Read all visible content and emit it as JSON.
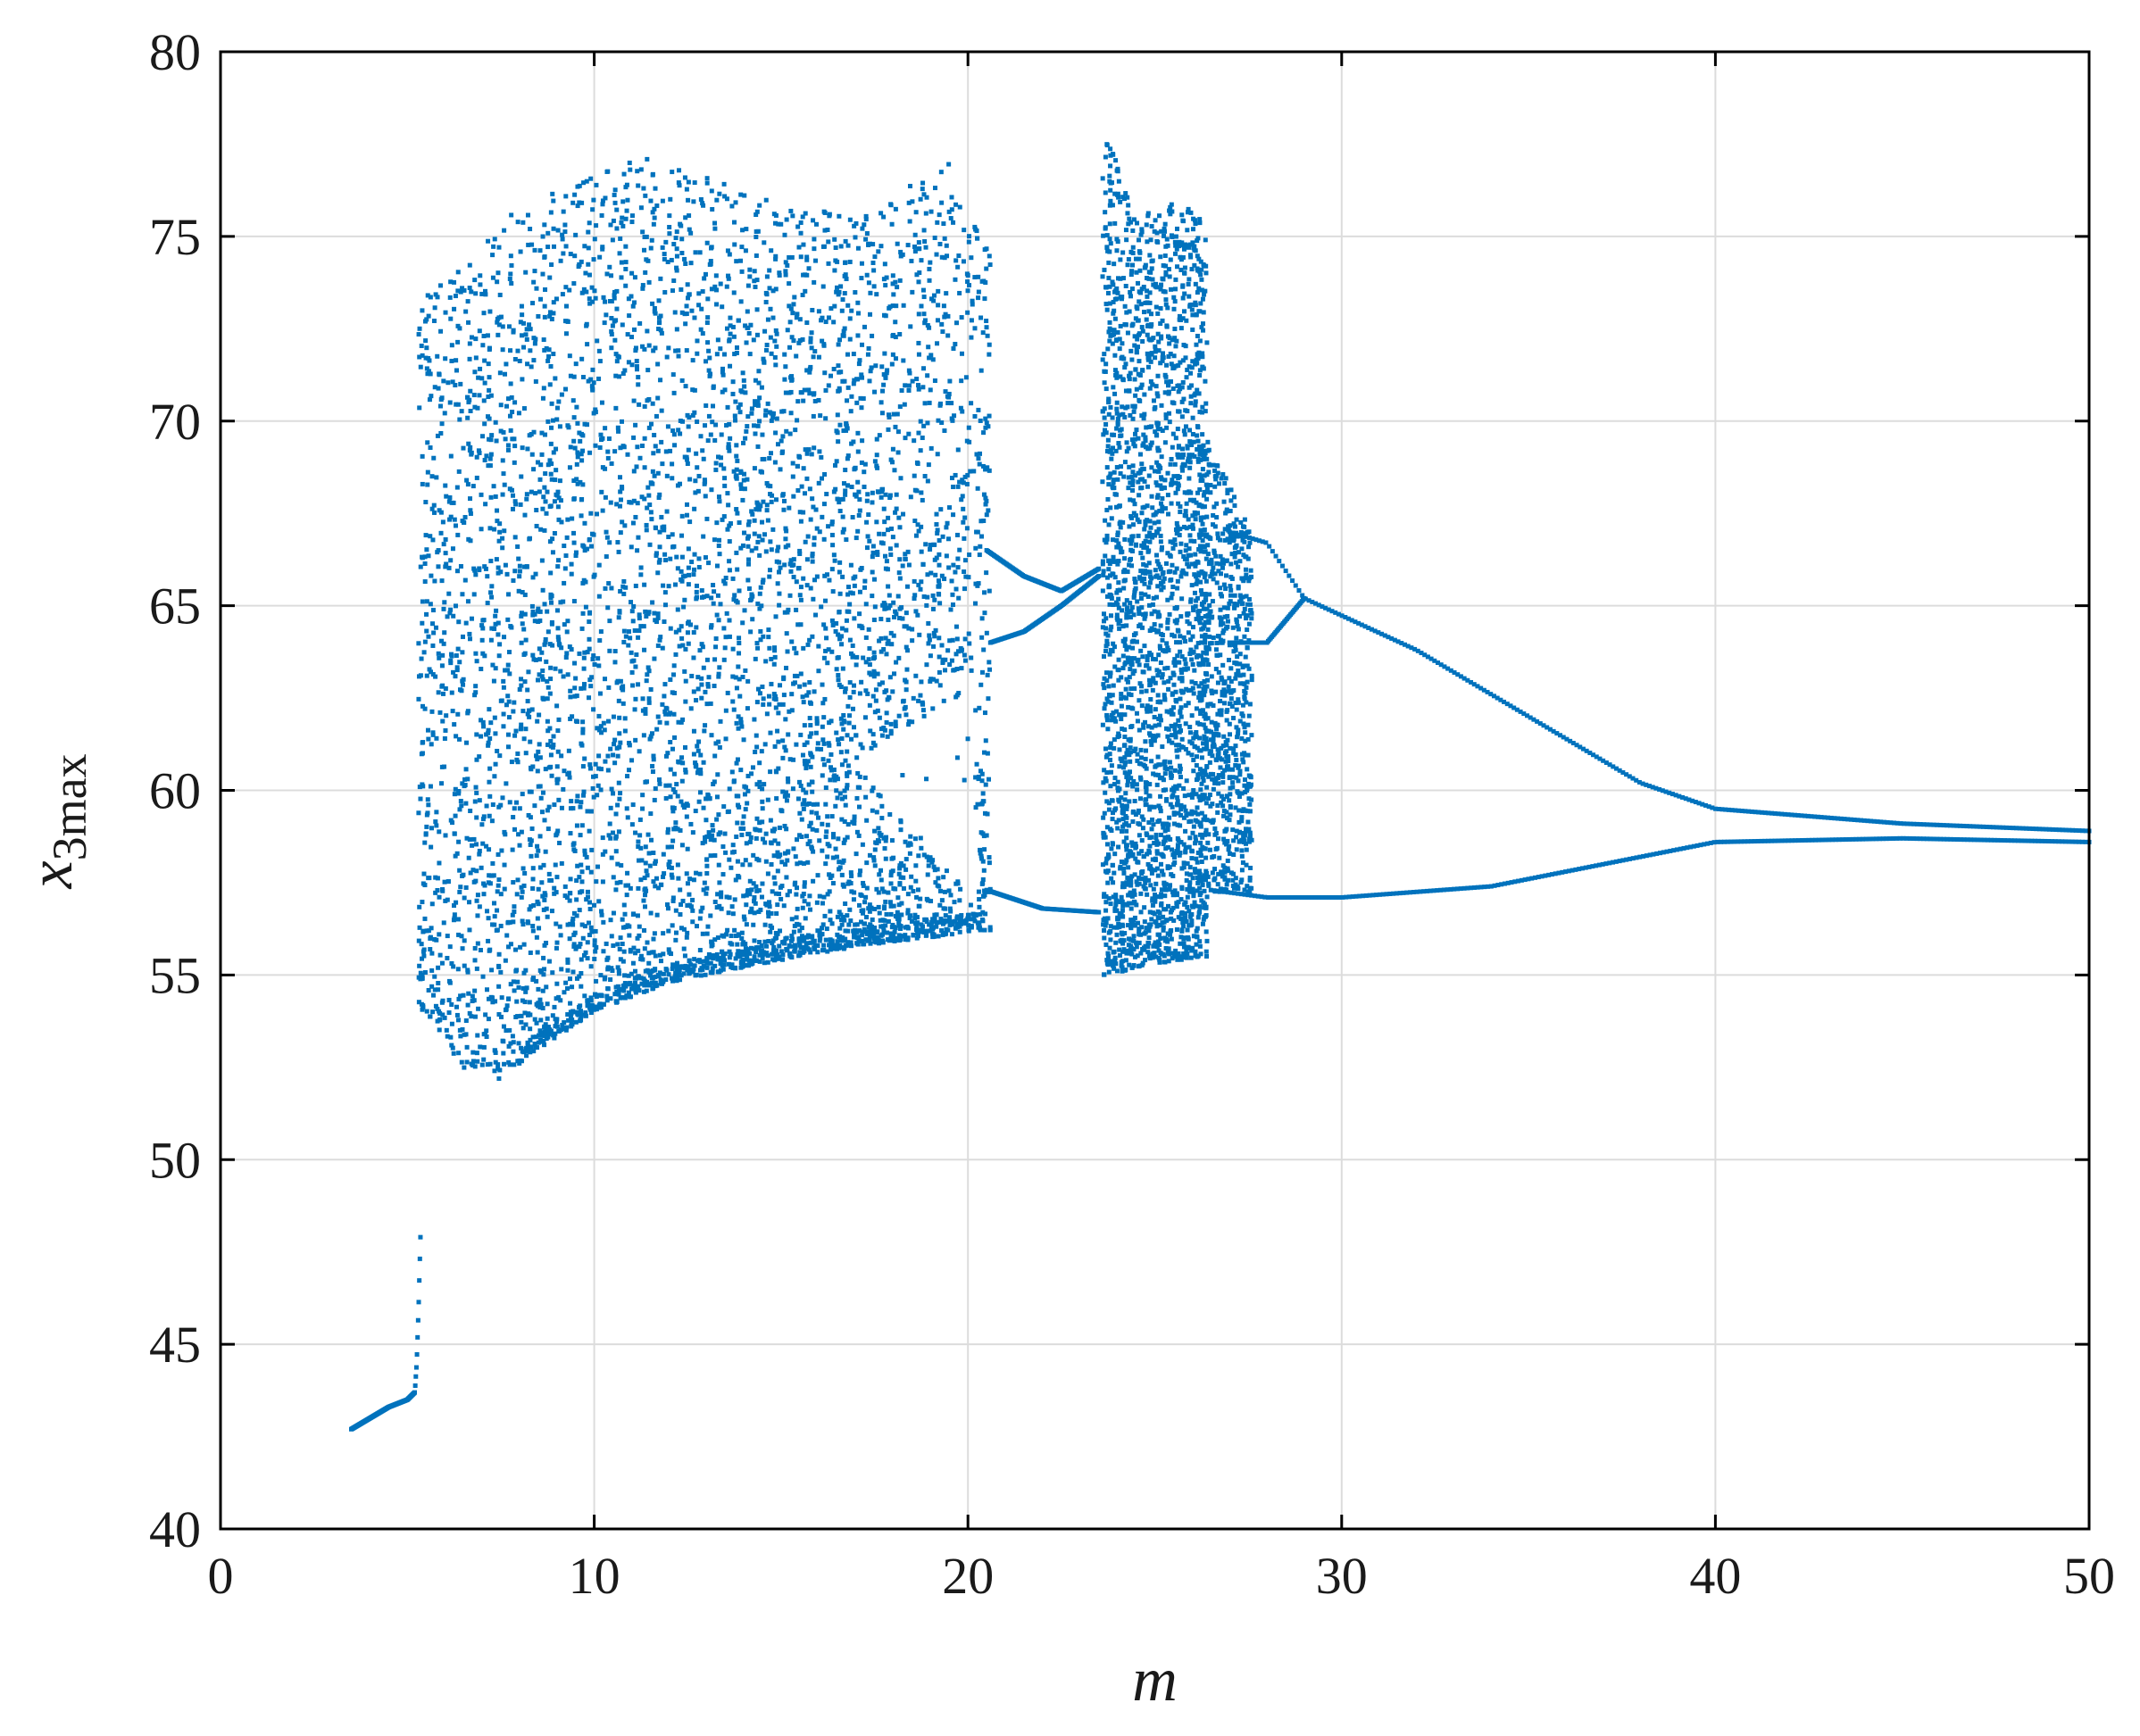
{
  "chart_data": {
    "type": "scatter",
    "title": "",
    "xlabel": "m",
    "ylabel": {
      "base": "x",
      "subscript": "3max"
    },
    "xlim": [
      0,
      50
    ],
    "ylim": [
      40,
      80
    ],
    "xticks": [
      0,
      10,
      20,
      30,
      40,
      50
    ],
    "yticks": [
      40,
      45,
      50,
      55,
      60,
      65,
      70,
      75,
      80
    ],
    "grid": true,
    "box": true,
    "legend": "none",
    "point_color": "#0072BD",
    "series": [
      {
        "description_type": "bifurcation diagram",
        "periodic_branch_low_m": {
          "x": [
            3.5,
            4.0,
            4.5,
            5.0,
            5.2,
            5.25,
            5.3,
            5.35
          ],
          "y": [
            42.7,
            43.0,
            43.3,
            43.5,
            43.7,
            44.5,
            46.0,
            47.9
          ]
        },
        "chaotic_band_1": {
          "x_range": [
            5.3,
            20.6
          ],
          "upper_envelope": {
            "x": [
              5.5,
              8,
              11.5,
              14,
              17,
              19.5,
              20.3
            ],
            "y": [
              73.5,
              75.8,
              77.3,
              76.2,
              75.5,
              77.0,
              75.0
            ]
          },
          "lower_envelope": {
            "x": [
              5.3,
              6.5,
              7.5,
              8.5,
              10,
              12,
              14,
              16,
              18,
              20.5
            ],
            "y": [
              54.2,
              52.5,
              52.1,
              53.0,
              54.0,
              54.8,
              55.2,
              55.6,
              55.9,
              56.2
            ]
          },
          "window": {
            "x_range": [
              17.0,
              20.2
            ],
            "upper": [
              60.8,
              62.8
            ],
            "lower": [
              60.6,
              57.0
            ]
          }
        },
        "period2_window": {
          "upper_branch": {
            "x": [
              20.5,
              21.5,
              22.5,
              23.5
            ],
            "y": [
              66.5,
              65.8,
              65.4,
              66.0
            ]
          },
          "middle_branch": {
            "x": [
              20.6,
              21.5,
              22.5,
              23.5
            ],
            "y": [
              64.0,
              64.3,
              65.0,
              65.8
            ]
          },
          "lower_branch": {
            "x": [
              20.5,
              22.0,
              23.5
            ],
            "y": [
              57.3,
              56.8,
              56.7
            ]
          }
        },
        "chaotic_band_2": {
          "x_range": [
            23.6,
            26.4
          ],
          "upper_envelope": {
            "x": [
              23.8,
              24.5,
              25.5,
              26.3
            ],
            "y": [
              77.5,
              75.5,
              76.0,
              75.5
            ]
          },
          "lower_envelope": {
            "x": [
              23.8,
              25,
              26.3
            ],
            "y": [
              55.0,
              55.3,
              55.5
            ]
          }
        },
        "period_doubling_tail": {
          "upper": {
            "x": [
              27.0,
              28.0,
              29.0,
              32.0,
              35.0,
              38.0,
              40.0,
              45.0,
              50.0
            ],
            "y": [
              67.0,
              66.7,
              65.2,
              63.8,
              62.0,
              60.2,
              59.5,
              59.1,
              58.9
            ]
          },
          "loop_lower": {
            "x": [
              27.0,
              28.0,
              29.0
            ],
            "y": [
              64.0,
              64.0,
              65.2
            ]
          },
          "lower": {
            "x": [
              26.5,
              28.0,
              30.0,
              34.0,
              38.0,
              40.0,
              45.0,
              50.0
            ],
            "y": [
              57.3,
              57.1,
              57.1,
              57.4,
              58.2,
              58.6,
              58.7,
              58.6
            ]
          }
        }
      }
    ]
  }
}
